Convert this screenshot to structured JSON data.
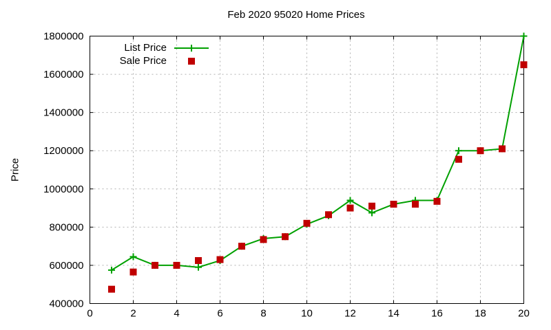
{
  "chart": {
    "title": "Feb 2020 95020 Home Prices",
    "ylabel": "Price"
  },
  "legend": {
    "items": [
      {
        "label": "List Price"
      },
      {
        "label": "Sale Price"
      }
    ]
  },
  "colors": {
    "list_series": "#00a000",
    "sale_series": "#c00000",
    "grid": "#b0b0b0",
    "axis": "#000000",
    "text": "#000000",
    "background": "#ffffff"
  },
  "chart_data": {
    "type": "line",
    "title": "Feb 2020 95020 Home Prices",
    "xlabel": "",
    "ylabel": "Price",
    "xlim": [
      0,
      20
    ],
    "ylim": [
      400000,
      1800000
    ],
    "xticks": [
      0,
      2,
      4,
      6,
      8,
      10,
      12,
      14,
      16,
      18,
      20
    ],
    "yticks": [
      400000,
      600000,
      800000,
      1000000,
      1200000,
      1400000,
      1600000,
      1800000
    ],
    "grid": true,
    "legend_position": "top-left-inside",
    "x": [
      1,
      2,
      3,
      4,
      5,
      6,
      7,
      8,
      9,
      10,
      11,
      12,
      13,
      14,
      15,
      16,
      17,
      18,
      19,
      20
    ],
    "series": [
      {
        "name": "List Price",
        "color": "#00a000",
        "line": true,
        "marker": "plus",
        "values": [
          575000,
          645000,
          600000,
          600000,
          590000,
          625000,
          700000,
          740000,
          750000,
          815000,
          860000,
          940000,
          875000,
          920000,
          940000,
          940000,
          1200000,
          1200000,
          1210000,
          1800000
        ]
      },
      {
        "name": "Sale Price",
        "color": "#c00000",
        "line": false,
        "marker": "square",
        "values": [
          475000,
          565000,
          600000,
          600000,
          625000,
          630000,
          700000,
          735000,
          750000,
          820000,
          865000,
          900000,
          910000,
          920000,
          920000,
          935000,
          1155000,
          1200000,
          1210000,
          1650000
        ]
      }
    ]
  }
}
